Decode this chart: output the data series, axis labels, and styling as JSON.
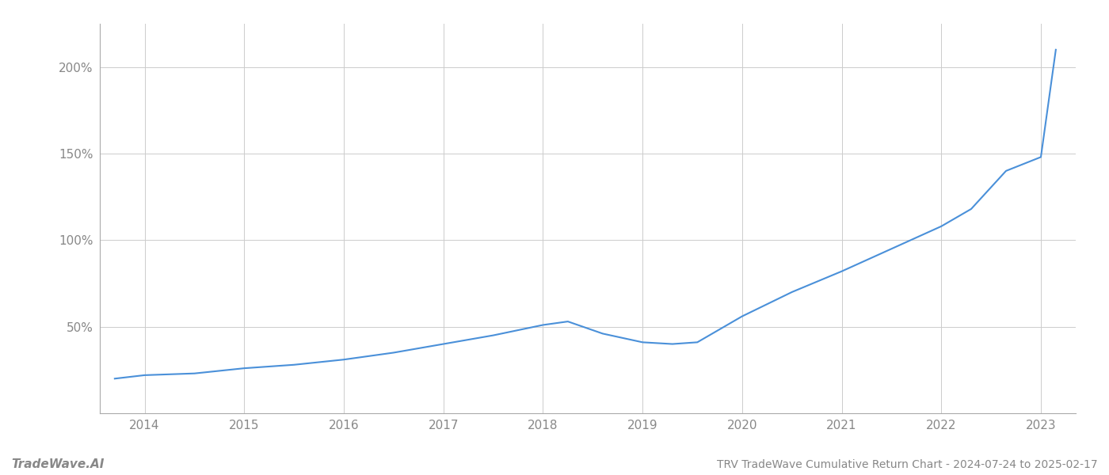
{
  "title": "TRV TradeWave Cumulative Return Chart - 2024-07-24 to 2025-02-17",
  "watermark": "TradeWave.AI",
  "line_color": "#4a90d9",
  "background_color": "#ffffff",
  "grid_color": "#cccccc",
  "x_years": [
    2013.7,
    2014.0,
    2014.5,
    2015.0,
    2015.5,
    2016.0,
    2016.5,
    2017.0,
    2017.5,
    2018.0,
    2018.25,
    2018.6,
    2019.0,
    2019.3,
    2019.55,
    2020.0,
    2020.5,
    2021.0,
    2021.5,
    2022.0,
    2022.3,
    2022.65,
    2023.0,
    2023.15
  ],
  "y_values": [
    20,
    22,
    23,
    26,
    28,
    31,
    35,
    40,
    45,
    51,
    53,
    46,
    41,
    40,
    41,
    56,
    70,
    82,
    95,
    108,
    118,
    140,
    148,
    210
  ],
  "yticks": [
    50,
    100,
    150,
    200
  ],
  "ytick_labels": [
    "50%",
    "100%",
    "150%",
    "200%"
  ],
  "xtick_years": [
    2014,
    2015,
    2016,
    2017,
    2018,
    2019,
    2020,
    2021,
    2022,
    2023
  ],
  "xlim": [
    2013.55,
    2023.35
  ],
  "ylim": [
    0,
    225
  ],
  "line_width": 1.5,
  "title_fontsize": 10,
  "tick_fontsize": 11,
  "watermark_fontsize": 11
}
